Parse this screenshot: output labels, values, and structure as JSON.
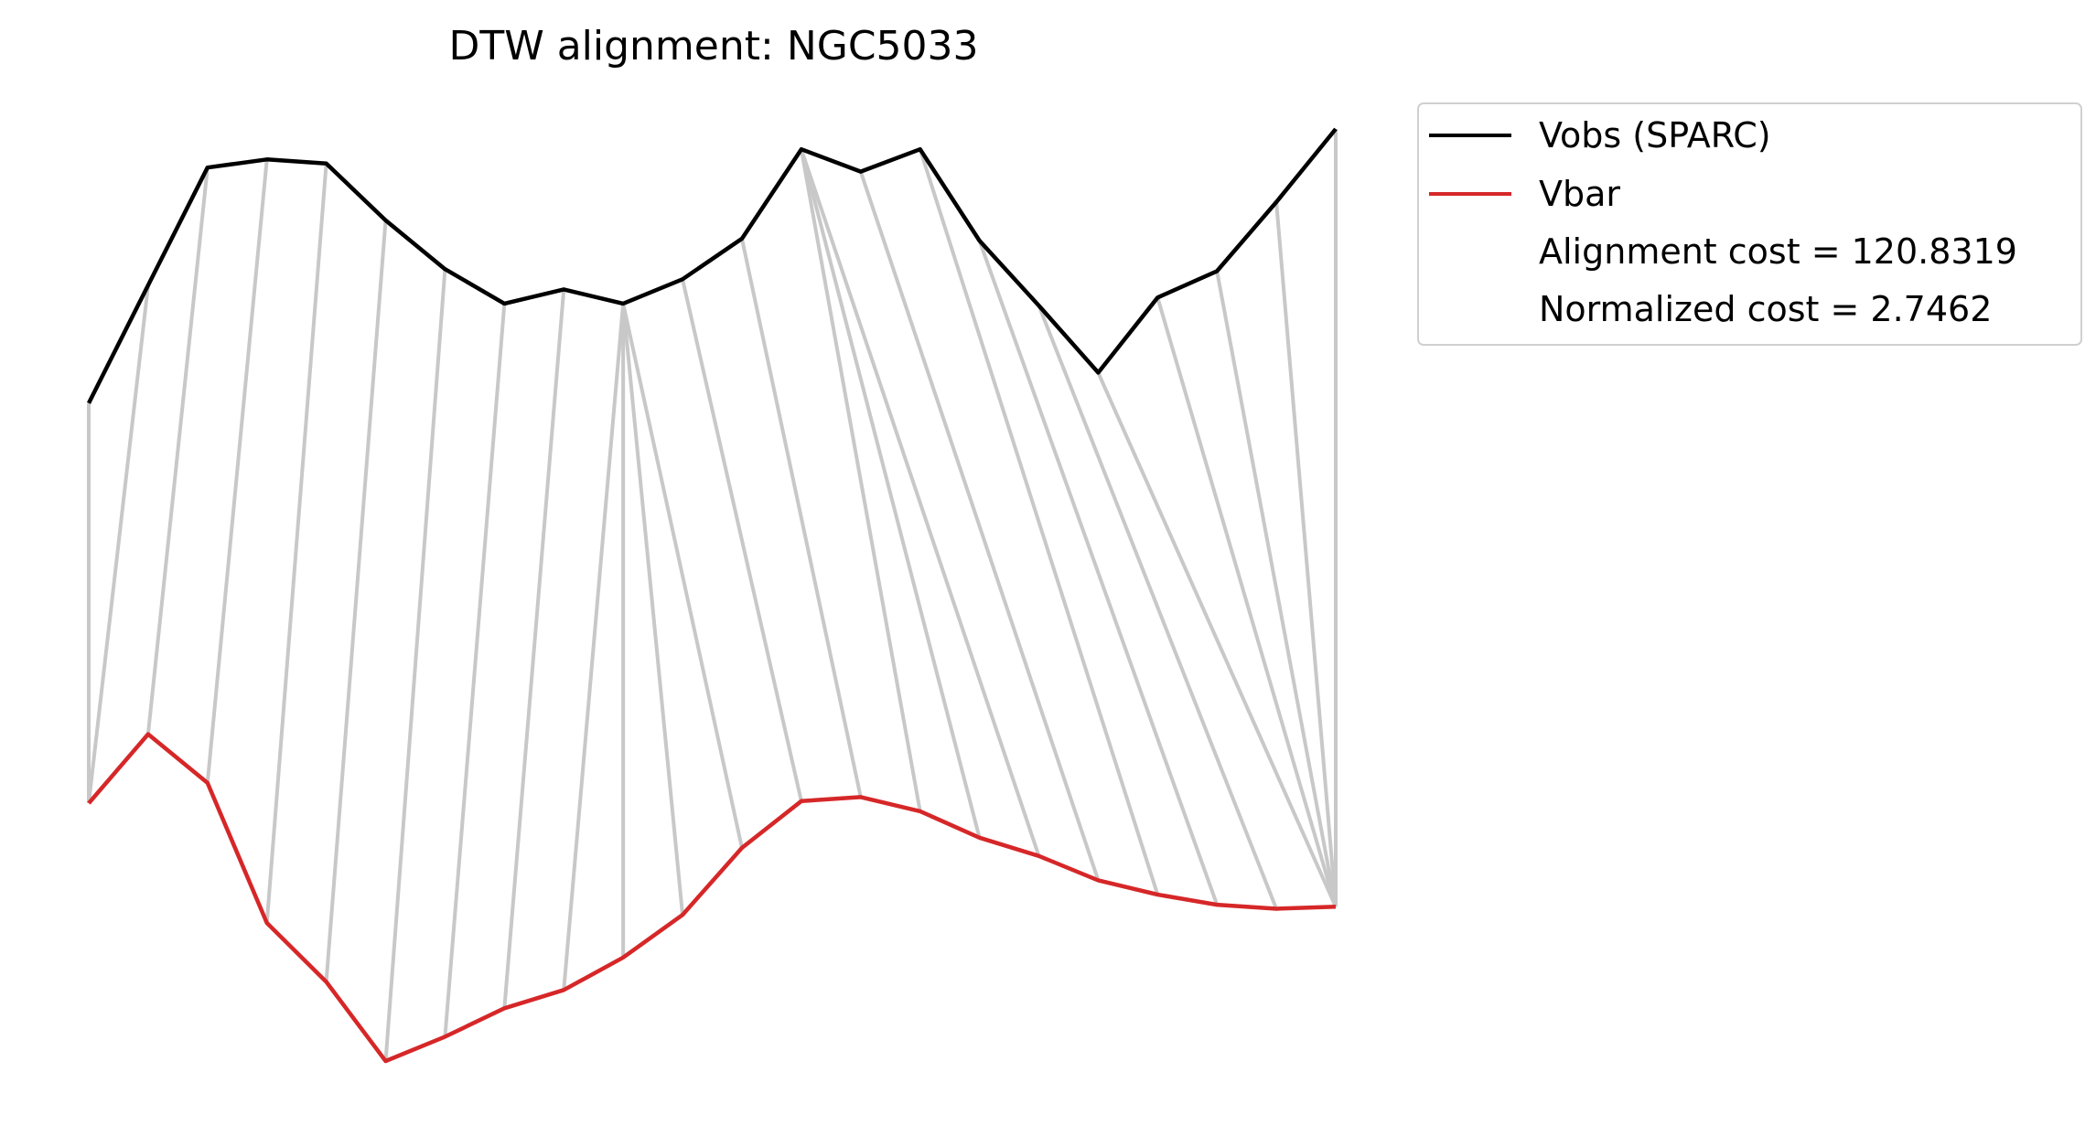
{
  "chart_data": {
    "type": "line",
    "title": "DTW alignment: NGC5033",
    "xlabel": "",
    "ylabel": "",
    "axes_visible": false,
    "grid": false,
    "legend_placement": "outside-top-right",
    "x": [
      0,
      1,
      2,
      3,
      4,
      5,
      6,
      7,
      8,
      9,
      10,
      11,
      12,
      13,
      14,
      15,
      16,
      17,
      18,
      19,
      20,
      21
    ],
    "series": [
      {
        "name": "Vobs (SPARC)",
        "color": "#000000",
        "values": [
          0.622,
          0.68,
          0.738,
          0.742,
          0.74,
          0.712,
          0.688,
          0.671,
          0.678,
          0.671,
          0.683,
          0.703,
          0.747,
          0.736,
          0.747,
          0.702,
          0.67,
          0.637,
          0.674,
          0.687,
          0.721,
          0.757
        ]
      },
      {
        "name": "Vbar",
        "color": "#d62728",
        "values": [
          0.425,
          0.459,
          0.435,
          0.366,
          0.337,
          0.298,
          0.31,
          0.324,
          0.333,
          0.349,
          0.37,
          0.403,
          0.426,
          0.428,
          0.421,
          0.408,
          0.399,
          0.387,
          0.38,
          0.375,
          0.373,
          0.374
        ]
      }
    ],
    "alignment_links": [
      [
        0,
        0
      ],
      [
        1,
        0
      ],
      [
        2,
        1
      ],
      [
        3,
        2
      ],
      [
        4,
        3
      ],
      [
        5,
        4
      ],
      [
        6,
        5
      ],
      [
        7,
        6
      ],
      [
        8,
        7
      ],
      [
        9,
        8
      ],
      [
        9,
        9
      ],
      [
        9,
        10
      ],
      [
        9,
        11
      ],
      [
        10,
        12
      ],
      [
        11,
        13
      ],
      [
        12,
        14
      ],
      [
        12,
        15
      ],
      [
        12,
        16
      ],
      [
        13,
        17
      ],
      [
        14,
        18
      ],
      [
        15,
        19
      ],
      [
        16,
        20
      ],
      [
        17,
        21
      ],
      [
        18,
        21
      ],
      [
        19,
        21
      ],
      [
        20,
        21
      ],
      [
        21,
        21
      ]
    ],
    "links_color": "#c8c8c8",
    "legend": [
      {
        "label": "Vobs (SPARC)",
        "color": "#000000",
        "swatch": "line"
      },
      {
        "label": "Vbar",
        "color": "#d62728",
        "swatch": "line"
      },
      {
        "label": "Alignment cost = 120.8319",
        "swatch": "none"
      },
      {
        "label": "Normalized cost = 2.7462",
        "swatch": "none"
      }
    ]
  }
}
